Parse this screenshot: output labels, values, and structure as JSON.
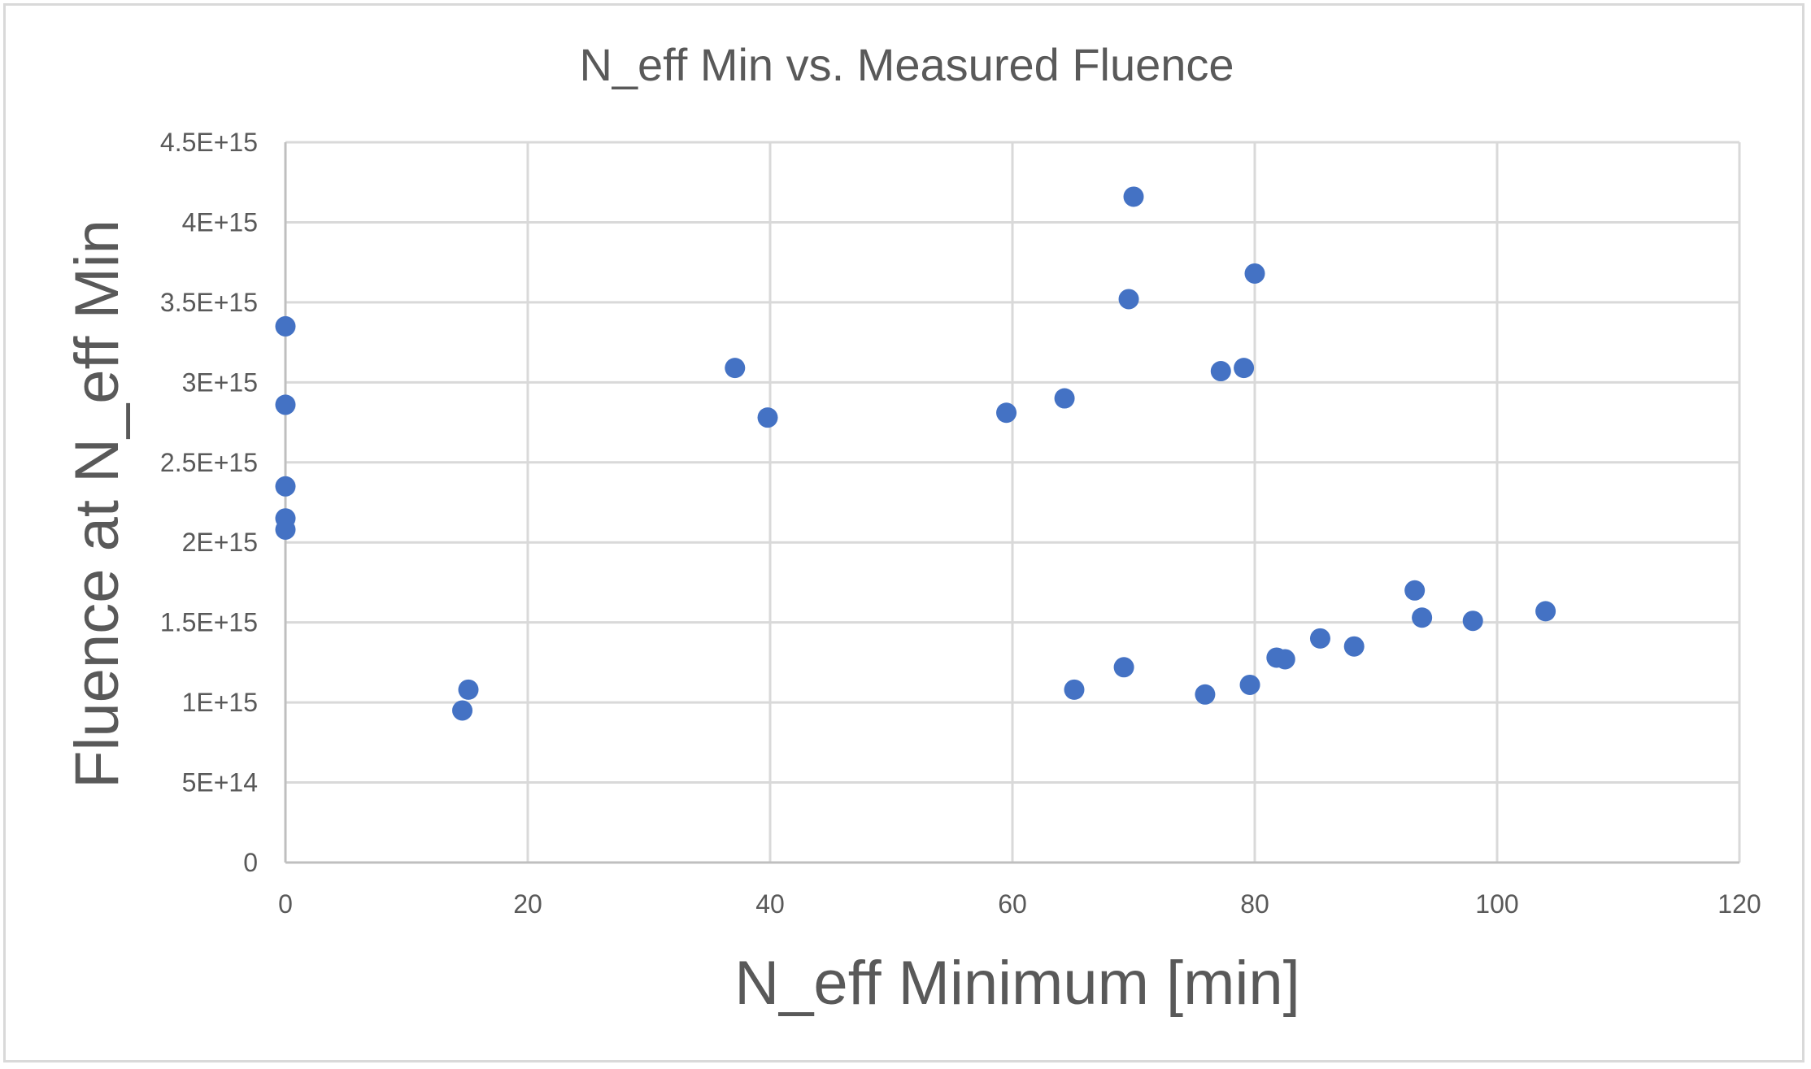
{
  "chart_data": {
    "type": "scatter",
    "title": "N_eff Min vs. Measured Fluence",
    "xlabel": "N_eff Minimum [min]",
    "ylabel": "Fluence at N_eff Min",
    "xlim": [
      0,
      120
    ],
    "ylim": [
      0,
      4500000000000000.0
    ],
    "x_ticks": [
      0,
      20,
      40,
      60,
      80,
      100,
      120
    ],
    "x_tick_labels": [
      "0",
      "20",
      "40",
      "60",
      "80",
      "100",
      "120"
    ],
    "y_ticks": [
      0,
      500000000000000.0,
      1000000000000000.0,
      1500000000000000.0,
      2000000000000000.0,
      2500000000000000.0,
      3000000000000000.0,
      3500000000000000.0,
      4000000000000000.0,
      4500000000000000.0
    ],
    "y_tick_labels": [
      "0",
      "5E+14",
      "1E+15",
      "1.5E+15",
      "2E+15",
      "2.5E+15",
      "3E+15",
      "3.5E+15",
      "4E+15",
      "4.5E+15"
    ],
    "grid": true,
    "marker_color": "#4472c4",
    "points": [
      {
        "x": 0,
        "y": 3350000000000000.0
      },
      {
        "x": 0,
        "y": 2860000000000000.0
      },
      {
        "x": 0,
        "y": 2350000000000000.0
      },
      {
        "x": 0,
        "y": 2150000000000000.0
      },
      {
        "x": 0,
        "y": 2080000000000000.0
      },
      {
        "x": 14.6,
        "y": 950000000000000.0
      },
      {
        "x": 15.1,
        "y": 1080000000000000.0
      },
      {
        "x": 37.1,
        "y": 3090000000000000.0
      },
      {
        "x": 39.8,
        "y": 2780000000000000.0
      },
      {
        "x": 59.5,
        "y": 2810000000000000.0
      },
      {
        "x": 64.3,
        "y": 2900000000000000.0
      },
      {
        "x": 65.1,
        "y": 1080000000000000.0
      },
      {
        "x": 69.2,
        "y": 1220000000000000.0
      },
      {
        "x": 69.6,
        "y": 3520000000000000.0
      },
      {
        "x": 70.0,
        "y": 4160000000000000.0
      },
      {
        "x": 75.9,
        "y": 1050000000000000.0
      },
      {
        "x": 77.2,
        "y": 3070000000000000.0
      },
      {
        "x": 79.1,
        "y": 3090000000000000.0
      },
      {
        "x": 79.6,
        "y": 1110000000000000.0
      },
      {
        "x": 80.0,
        "y": 3680000000000000.0
      },
      {
        "x": 81.8,
        "y": 1280000000000000.0
      },
      {
        "x": 82.5,
        "y": 1270000000000000.0
      },
      {
        "x": 85.4,
        "y": 1400000000000000.0
      },
      {
        "x": 88.2,
        "y": 1350000000000000.0
      },
      {
        "x": 93.2,
        "y": 1700000000000000.0
      },
      {
        "x": 93.8,
        "y": 1530000000000000.0
      },
      {
        "x": 98.0,
        "y": 1510000000000000.0
      },
      {
        "x": 104.0,
        "y": 1570000000000000.0
      }
    ]
  }
}
